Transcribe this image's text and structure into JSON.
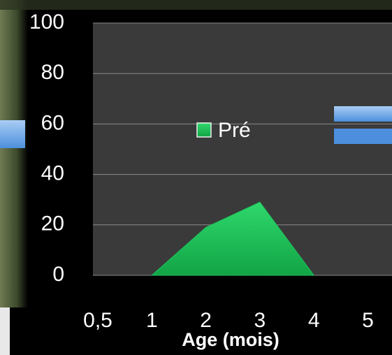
{
  "chart_data": {
    "type": "area",
    "x_label": "Age (mois)",
    "categories": [
      "0,5",
      "1",
      "2",
      "3",
      "4",
      "5"
    ],
    "series": [
      {
        "name": "Pré",
        "color": "#1ec45c",
        "values": [
          null,
          0,
          19,
          29,
          0,
          null
        ]
      }
    ],
    "ylim": [
      0,
      100
    ],
    "yticks": [
      0,
      20,
      40,
      60,
      80,
      100
    ],
    "grid": true,
    "legend": "center"
  }
}
